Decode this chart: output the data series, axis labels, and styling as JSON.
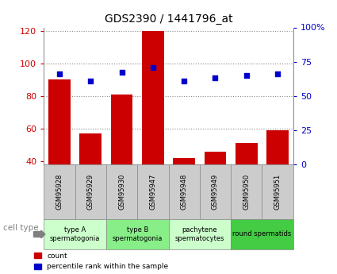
{
  "title": "GDS2390 / 1441796_at",
  "samples": [
    "GSM95928",
    "GSM95929",
    "GSM95930",
    "GSM95947",
    "GSM95948",
    "GSM95949",
    "GSM95950",
    "GSM95951"
  ],
  "counts": [
    90,
    57,
    81,
    120,
    42,
    46,
    51,
    59
  ],
  "percentiles": [
    66,
    61,
    67,
    71,
    61,
    63,
    65,
    66
  ],
  "ylim_left": [
    38,
    122
  ],
  "ylim_right": [
    0,
    100
  ],
  "yticks_left": [
    40,
    60,
    80,
    100,
    120
  ],
  "yticks_right": [
    0,
    25,
    50,
    75,
    100
  ],
  "ytick_right_labels": [
    "0",
    "25",
    "50",
    "75",
    "100%"
  ],
  "bar_color": "#cc0000",
  "scatter_color": "#0000cc",
  "cell_groups": [
    {
      "label": "type A\nspermatogonia",
      "start": 0,
      "end": 2,
      "color": "#ccffcc"
    },
    {
      "label": "type B\nspermatogonia",
      "start": 2,
      "end": 4,
      "color": "#88ee88"
    },
    {
      "label": "pachytene\nspermatocytes",
      "start": 4,
      "end": 6,
      "color": "#ccffcc"
    },
    {
      "label": "round spermatids",
      "start": 6,
      "end": 8,
      "color": "#44cc44"
    }
  ],
  "tick_label_color_left": "#cc0000",
  "tick_label_color_right": "#0000cc",
  "grid_color": "#888888",
  "background_color": "#ffffff",
  "sample_box_color": "#cccccc",
  "cell_type_label": "cell type"
}
